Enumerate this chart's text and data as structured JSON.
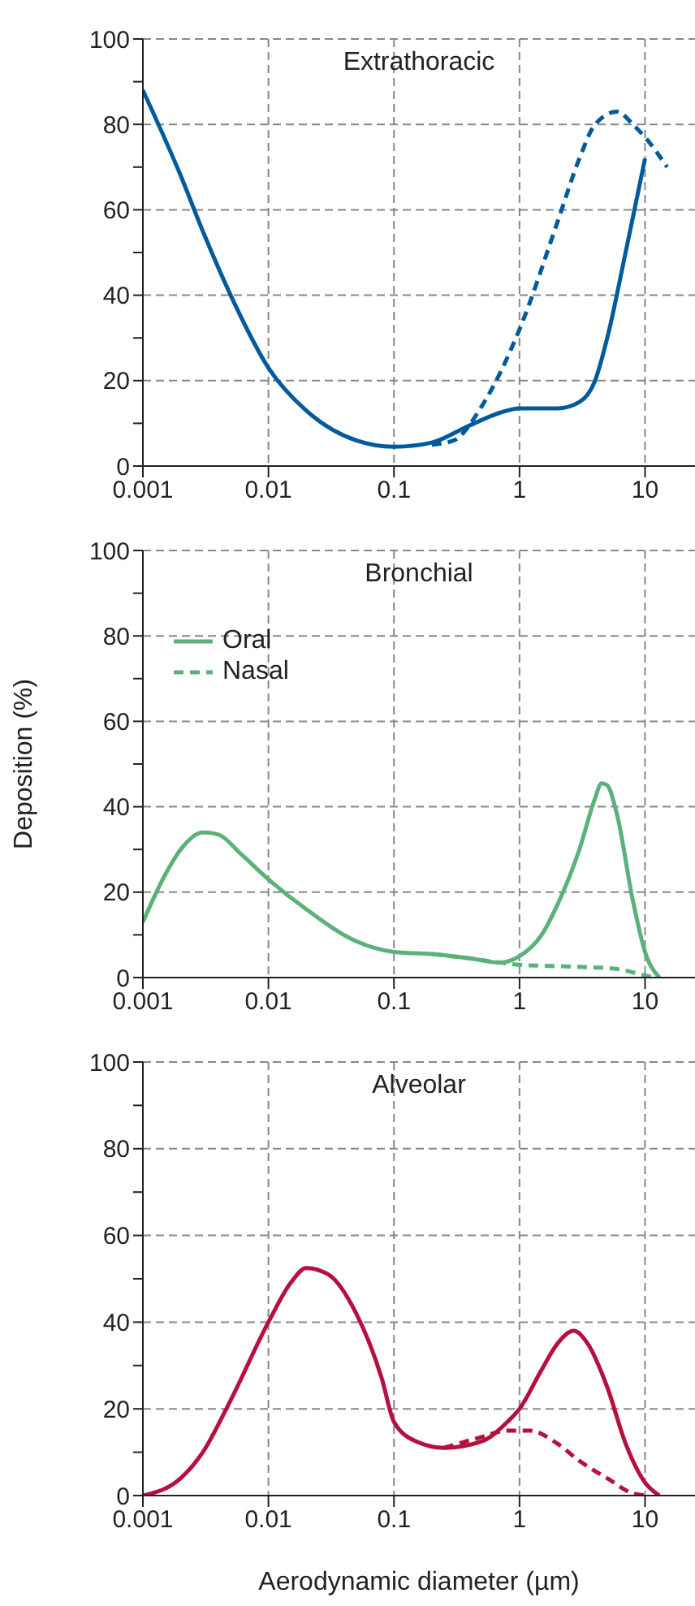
{
  "chart_data": [
    {
      "type": "line",
      "title": "Extrathoracic",
      "log": "x",
      "grid": true,
      "legend": false,
      "xlim": [
        0.001,
        25
      ],
      "xticks": [
        {
          "value": 0.001,
          "label": "0.001"
        },
        {
          "value": 0.01,
          "label": "0.01"
        },
        {
          "value": 0.1,
          "label": "0.1"
        },
        {
          "value": 1,
          "label": "1"
        },
        {
          "value": 10,
          "label": "10"
        }
      ],
      "ylim": [
        0,
        100
      ],
      "yticks": [
        0,
        {
          "value": 10,
          "label": null
        },
        20,
        {
          "value": 30,
          "label": null
        },
        40,
        {
          "value": 50,
          "label": null
        },
        60,
        {
          "value": 70,
          "label": null
        },
        80,
        {
          "value": 90,
          "label": null
        },
        100
      ],
      "series": [
        {
          "color": "#005a9c",
          "line_style": "solid",
          "x": [
            0.001,
            0.002,
            0.003,
            0.005,
            0.01,
            0.02,
            0.05,
            0.1,
            0.2,
            0.4,
            0.7,
            1,
            2,
            3,
            4,
            5,
            7,
            10
          ],
          "values": [
            88,
            68,
            55,
            40,
            23,
            13,
            6,
            4.5,
            5.5,
            9.5,
            12.5,
            13.5,
            13.5,
            15,
            20,
            30,
            50,
            72
          ]
        },
        {
          "color": "#005a9c",
          "line_style": "dashed",
          "x": [
            0.2,
            0.3,
            0.5,
            1,
            2,
            3,
            4,
            6,
            8,
            10,
            15
          ],
          "values": [
            5,
            6,
            14,
            32,
            57,
            72,
            80,
            83,
            80,
            77,
            70
          ]
        }
      ]
    },
    {
      "type": "line",
      "title": "Bronchial",
      "ylabel": "Deposition (%)",
      "log": "x",
      "grid": true,
      "legend": "top left",
      "xlim": [
        0.001,
        25
      ],
      "xticks": [
        {
          "value": 0.001,
          "label": "0.001"
        },
        {
          "value": 0.01,
          "label": "0.01"
        },
        {
          "value": 0.1,
          "label": "0.1"
        },
        {
          "value": 1,
          "label": "1"
        },
        {
          "value": 10,
          "label": "10"
        }
      ],
      "ylim": [
        0,
        100
      ],
      "yticks": [
        0,
        {
          "value": 10,
          "label": null
        },
        20,
        {
          "value": 30,
          "label": null
        },
        40,
        {
          "value": 50,
          "label": null
        },
        60,
        {
          "value": 70,
          "label": null
        },
        80,
        {
          "value": 90,
          "label": null
        },
        100
      ],
      "series": [
        {
          "name": "Oral",
          "color": "#5bb17a",
          "line_style": "solid",
          "x": [
            0.001,
            0.0015,
            0.002,
            0.003,
            0.004,
            0.006,
            0.01,
            0.02,
            0.05,
            0.1,
            0.2,
            0.4,
            0.7,
            1,
            1.5,
            2,
            3,
            4,
            4.5,
            5,
            6,
            8,
            10,
            13
          ],
          "values": [
            13,
            24,
            30,
            34,
            33.5,
            29,
            23,
            16,
            8.5,
            6,
            5.5,
            4.5,
            3.5,
            5,
            10,
            17,
            30,
            42,
            45.5,
            45,
            38,
            18,
            6,
            0
          ]
        },
        {
          "name": "Nasal",
          "color": "#5bb17a",
          "line_style": "dashed",
          "x": [
            0.2,
            0.4,
            0.7,
            1,
            3,
            6,
            10,
            12
          ],
          "values": [
            5.5,
            4.5,
            3.5,
            3,
            2.5,
            2,
            0.5,
            0
          ]
        }
      ]
    },
    {
      "type": "line",
      "title": "Alveolar",
      "xlabel": "Aerodynamic diameter (µm)",
      "log": "x",
      "grid": true,
      "legend": false,
      "xlim": [
        0.001,
        25
      ],
      "xticks": [
        {
          "value": 0.001,
          "label": "0.001"
        },
        {
          "value": 0.01,
          "label": "0.01"
        },
        {
          "value": 0.1,
          "label": "0.1"
        },
        {
          "value": 1,
          "label": "1"
        },
        {
          "value": 10,
          "label": "10"
        }
      ],
      "ylim": [
        0,
        100
      ],
      "yticks": [
        0,
        {
          "value": 10,
          "label": null
        },
        20,
        {
          "value": 30,
          "label": null
        },
        40,
        {
          "value": 50,
          "label": null
        },
        60,
        {
          "value": 70,
          "label": null
        },
        80,
        {
          "value": 90,
          "label": null
        },
        100
      ],
      "series": [
        {
          "color": "#b5103e",
          "line_style": "solid",
          "x": [
            0.001,
            0.002,
            0.003,
            0.005,
            0.01,
            0.015,
            0.02,
            0.03,
            0.05,
            0.08,
            0.1,
            0.15,
            0.25,
            0.5,
            0.8,
            1,
            1.5,
            2,
            2.7,
            3.5,
            5,
            7,
            10,
            13
          ],
          "values": [
            0,
            4,
            10,
            22,
            40,
            49,
            52.5,
            51,
            42,
            27,
            17,
            12.5,
            11,
            12.5,
            17,
            20,
            29,
            35,
            38,
            35,
            25,
            12,
            3,
            0
          ]
        },
        {
          "color": "#b5103e",
          "line_style": "dashed",
          "x": [
            0.25,
            0.5,
            0.8,
            1.2,
            2,
            3,
            5,
            8,
            10
          ],
          "values": [
            11,
            13.5,
            15,
            15,
            12,
            8,
            4,
            0.5,
            0
          ]
        }
      ]
    }
  ]
}
